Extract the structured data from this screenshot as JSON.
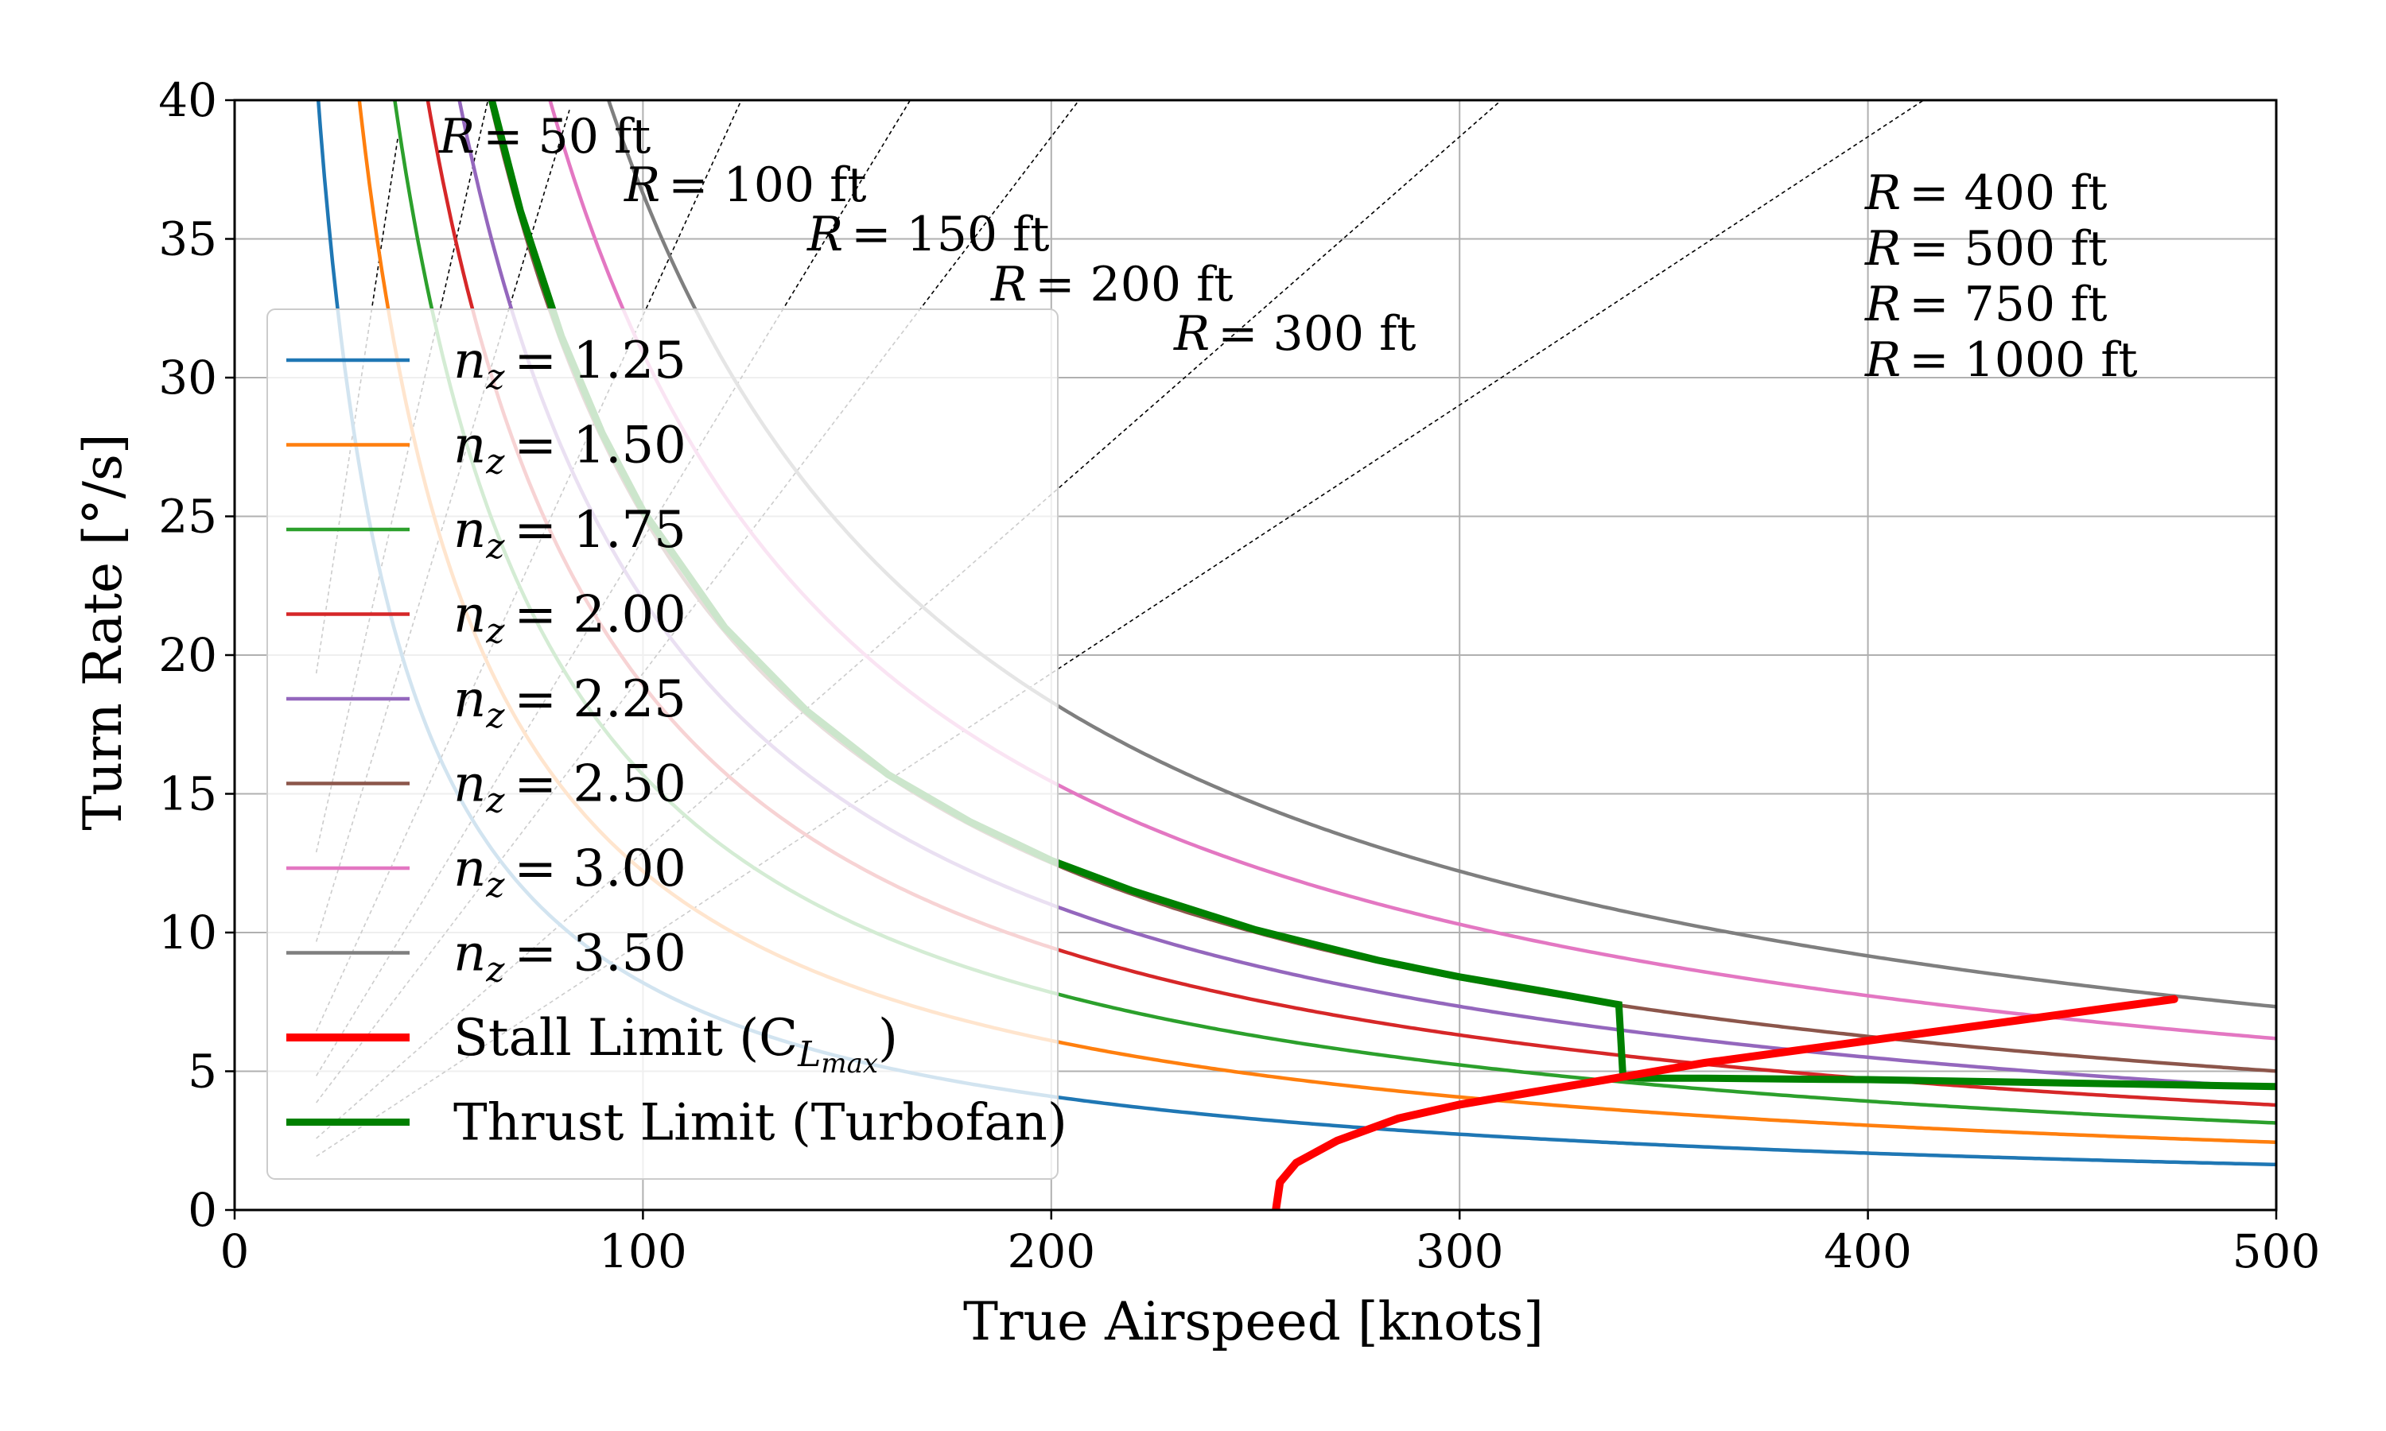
{
  "chart_data": {
    "type": "line",
    "xlabel": "True Airspeed [knots]",
    "ylabel": "Turn Rate [°/s]",
    "xlim": [
      0,
      500
    ],
    "ylim": [
      0,
      40
    ],
    "xticks": [
      0,
      100,
      200,
      300,
      400,
      500
    ],
    "yticks": [
      0,
      5,
      10,
      15,
      20,
      25,
      30,
      35,
      40
    ],
    "xtick_labels": [
      "0",
      "100",
      "200",
      "300",
      "400",
      "500"
    ],
    "ytick_labels": [
      "0",
      "5",
      "10",
      "15",
      "20",
      "25",
      "30",
      "35",
      "40"
    ],
    "grid": true,
    "legend_position": "left",
    "load_factor_series": [
      {
        "name": "n_z = 1.25",
        "legend_text": "= 1.25",
        "nz": 1.25,
        "color": "#1f77b4"
      },
      {
        "name": "n_z = 1.50",
        "legend_text": "= 1.50",
        "nz": 1.5,
        "color": "#ff7f0e"
      },
      {
        "name": "n_z = 1.75",
        "legend_text": "= 1.75",
        "nz": 1.75,
        "color": "#2ca02c"
      },
      {
        "name": "n_z = 2.00",
        "legend_text": "= 2.00",
        "nz": 2.0,
        "color": "#d62728"
      },
      {
        "name": "n_z = 2.25",
        "legend_text": "= 2.25",
        "nz": 2.25,
        "color": "#9467bd"
      },
      {
        "name": "n_z = 2.50",
        "legend_text": "= 2.50",
        "nz": 2.5,
        "color": "#8c564b"
      },
      {
        "name": "n_z = 3.00",
        "legend_text": "= 3.00",
        "nz": 3.0,
        "color": "#e377c2"
      },
      {
        "name": "n_z = 3.50",
        "legend_text": "= 3.50",
        "nz": 3.5,
        "color": "#7f7f7f"
      }
    ],
    "stall_limit": {
      "name": "Stall Limit (C_Lmax)",
      "legend_text": "Stall Limit (C",
      "color": "#ff0000",
      "x": [
        255,
        256,
        260,
        270,
        285,
        300,
        320,
        340,
        360,
        380,
        400,
        420,
        440,
        460,
        475
      ],
      "y": [
        0,
        1.0,
        1.7,
        2.5,
        3.3,
        3.8,
        4.3,
        4.8,
        5.3,
        5.7,
        6.1,
        6.5,
        6.9,
        7.3,
        7.6
      ]
    },
    "thrust_limit": {
      "name": "Thrust Limit (Turbofan)",
      "legend_text": "Thrust Limit (Turbofan)",
      "color": "#008000",
      "x": [
        63,
        70,
        80,
        90,
        100,
        120,
        140,
        160,
        180,
        200,
        220,
        250,
        280,
        300,
        320,
        339,
        340,
        345,
        360,
        380,
        400,
        420,
        440,
        460,
        480,
        500
      ],
      "y": [
        40,
        36.0,
        31.5,
        28.0,
        25.2,
        21.0,
        18.0,
        15.7,
        14.0,
        12.6,
        11.5,
        10.1,
        9.0,
        8.4,
        7.9,
        7.4,
        4.8,
        4.75,
        4.75,
        4.72,
        4.7,
        4.65,
        4.6,
        4.55,
        4.5,
        4.45
      ]
    },
    "radius_lines": [
      {
        "label": "= 50 ft",
        "R_ft": 50
      },
      {
        "label": "= 100 ft",
        "R_ft": 100
      },
      {
        "label": "= 150 ft",
        "R_ft": 150
      },
      {
        "label": "= 200 ft",
        "R_ft": 200
      },
      {
        "label": "= 300 ft",
        "R_ft": 300
      },
      {
        "label": "= 400 ft",
        "R_ft": 400
      },
      {
        "label": "= 500 ft",
        "R_ft": 500
      },
      {
        "label": "= 750 ft",
        "R_ft": 750
      },
      {
        "label": "= 1000 ft",
        "R_ft": 1000
      }
    ],
    "radius_label_prefix": "R",
    "legend_nz_symbol": "n",
    "legend_nz_subscript": "z",
    "stall_subscript_main": "L",
    "stall_subscript_sub": "max",
    "stall_suffix": ")"
  }
}
